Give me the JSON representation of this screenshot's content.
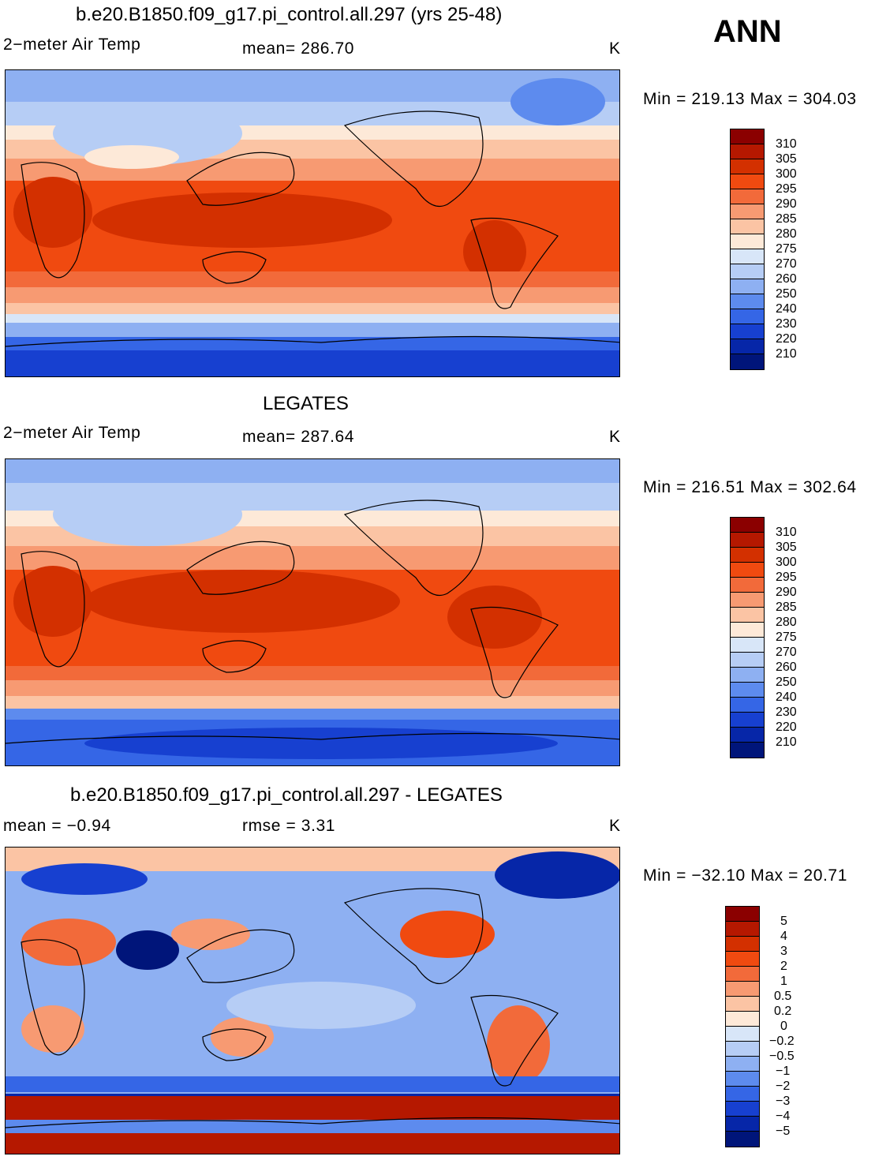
{
  "panel1": {
    "title": "b.e20.B1850.f09_g17.pi_control.all.297 (yrs 25-48)",
    "variable": "2−meter Air Temp",
    "stat_label": "mean= 286.70",
    "units": "K",
    "minmax": "Min = 219.13 Max = 304.03",
    "colorbar_labels": [
      "310",
      "305",
      "300",
      "295",
      "290",
      "285",
      "280",
      "275",
      "270",
      "260",
      "250",
      "240",
      "230",
      "220",
      "210"
    ]
  },
  "season": "ANN",
  "panel2": {
    "title": "LEGATES",
    "variable": "2−meter Air Temp",
    "stat_label": "mean= 287.64",
    "units": "K",
    "minmax": "Min = 216.51 Max = 302.64",
    "colorbar_labels": [
      "310",
      "305",
      "300",
      "295",
      "290",
      "285",
      "280",
      "275",
      "270",
      "260",
      "250",
      "240",
      "230",
      "220",
      "210"
    ]
  },
  "panel3": {
    "title": "b.e20.B1850.f09_g17.pi_control.all.297 - LEGATES",
    "mean_label": "mean =   −0.94",
    "rmse_label": "rmse =    3.31",
    "units": "K",
    "minmax": "Min = −32.10 Max =  20.71",
    "colorbar_labels": [
      "5",
      "4",
      "3",
      "2",
      "1",
      "0.5",
      "0.2",
      "0",
      "−0.2",
      "−0.5",
      "−1",
      "−2",
      "−3",
      "−4",
      "−5"
    ]
  },
  "colors": {
    "abs_scale": [
      "#8b0000",
      "#b51800",
      "#d33000",
      "#f04a10",
      "#f26a3a",
      "#f79a72",
      "#fbc4a4",
      "#fde9d8",
      "#d8e6f8",
      "#b6cdf5",
      "#8eb0f2",
      "#5d8bee",
      "#3566e6",
      "#1740d0",
      "#0626a8",
      "#00157a"
    ],
    "diff_scale": [
      "#8b0000",
      "#b51800",
      "#d33000",
      "#f04a10",
      "#f26a3a",
      "#f79a72",
      "#fbc4a4",
      "#fde9d8",
      "#d8e6f8",
      "#b6cdf5",
      "#8eb0f2",
      "#5d8bee",
      "#3566e6",
      "#1740d0",
      "#0626a8",
      "#00157a"
    ]
  }
}
